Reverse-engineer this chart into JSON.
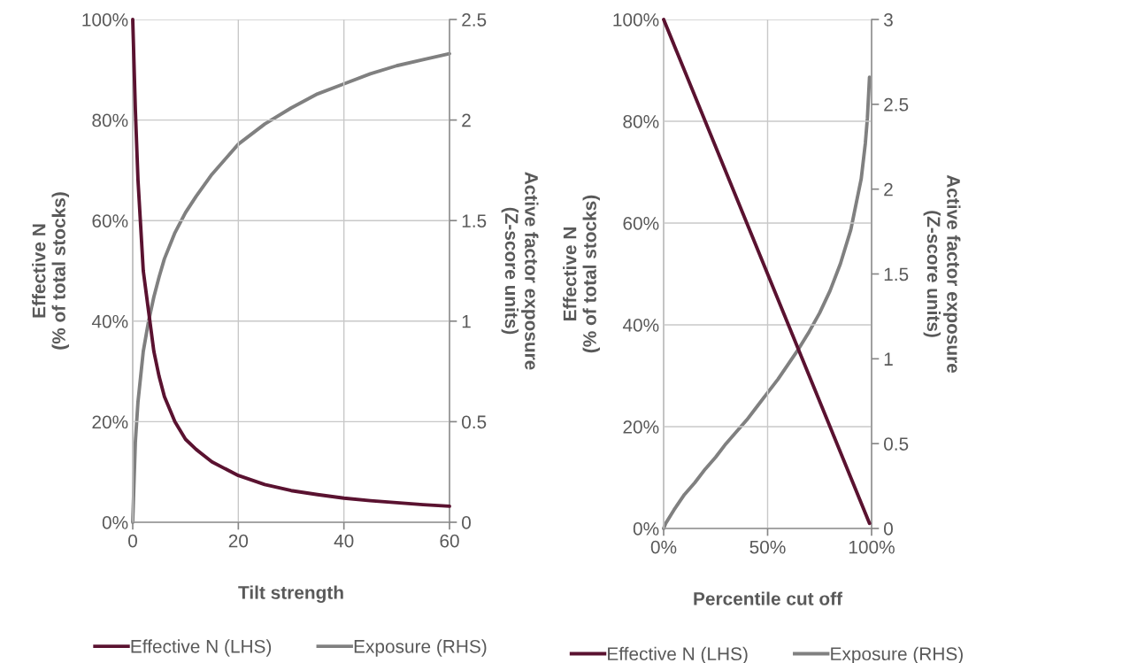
{
  "chart_data": [
    {
      "type": "line",
      "xlabel": "Tilt strength",
      "ylabel": "Effective N\n(% of total stocks)",
      "y2label": "Active factor exposure\n(Z-score units)",
      "xlim": [
        0,
        60
      ],
      "xticks": [
        0,
        20,
        40,
        60
      ],
      "ylim": [
        0,
        100
      ],
      "yticks": [
        {
          "value": 0,
          "label": "0%"
        },
        {
          "value": 20,
          "label": "20%"
        },
        {
          "value": 40,
          "label": "40%"
        },
        {
          "value": 60,
          "label": "60%"
        },
        {
          "value": 80,
          "label": "80%"
        },
        {
          "value": 100,
          "label": "100%"
        }
      ],
      "y2lim": [
        0,
        2.5
      ],
      "y2ticks": [
        0,
        0.5,
        1,
        1.5,
        2,
        2.5
      ],
      "grid": true,
      "legend": "bottom",
      "line_style": "solid",
      "series": [
        {
          "name": "Effective N (LHS)",
          "color": "#5a1230",
          "x": [
            0,
            0.5,
            1,
            2,
            3,
            4,
            5,
            6,
            8,
            10,
            12,
            15,
            20,
            25,
            30,
            35,
            40,
            45,
            50,
            55,
            60
          ],
          "values": [
            100,
            82,
            68,
            50,
            42,
            34,
            29,
            25,
            20,
            16.5,
            14.5,
            12,
            9.3,
            7.5,
            6.3,
            5.5,
            4.8,
            4.3,
            3.9,
            3.5,
            3.2
          ]
        },
        {
          "name": "Exposure (RHS)",
          "color": "#808080",
          "axis": "y2",
          "x": [
            0,
            0.5,
            1,
            2,
            3,
            4,
            5,
            6,
            8,
            10,
            12,
            15,
            20,
            25,
            30,
            35,
            40,
            45,
            50,
            55,
            60
          ],
          "values": [
            0,
            0.4,
            0.6,
            0.85,
            1.0,
            1.12,
            1.22,
            1.31,
            1.44,
            1.54,
            1.62,
            1.73,
            1.88,
            1.98,
            2.06,
            2.13,
            2.18,
            2.23,
            2.27,
            2.3,
            2.33
          ]
        }
      ]
    },
    {
      "type": "line",
      "xlabel": "Percentile cut off",
      "ylabel": "Effective N\n(% of total stocks)",
      "y2label": "Active factor exposure\n(Z-score units)",
      "xlim": [
        0,
        100
      ],
      "xticks": [
        {
          "value": 0,
          "label": "0%"
        },
        {
          "value": 50,
          "label": "50%"
        },
        {
          "value": 100,
          "label": "100%"
        }
      ],
      "ylim": [
        0,
        100
      ],
      "yticks": [
        {
          "value": 0,
          "label": "0%"
        },
        {
          "value": 20,
          "label": "20%"
        },
        {
          "value": 40,
          "label": "40%"
        },
        {
          "value": 60,
          "label": "60%"
        },
        {
          "value": 80,
          "label": "80%"
        },
        {
          "value": 100,
          "label": "100%"
        }
      ],
      "y2lim": [
        0,
        3
      ],
      "y2ticks": [
        0,
        0.5,
        1,
        1.5,
        2,
        2.5,
        3
      ],
      "grid": true,
      "legend": "bottom",
      "line_style": "solid",
      "series": [
        {
          "name": "Effective N (LHS)",
          "color": "#5a1230",
          "x": [
            0,
            99
          ],
          "values": [
            100,
            1
          ]
        },
        {
          "name": "Exposure (RHS)",
          "color": "#808080",
          "axis": "y2",
          "x": [
            0,
            1,
            5,
            10,
            15,
            20,
            25,
            30,
            35,
            40,
            45,
            50,
            55,
            60,
            65,
            70,
            75,
            80,
            85,
            90,
            95,
            97,
            98,
            99
          ],
          "values": [
            0,
            0.03,
            0.11,
            0.2,
            0.27,
            0.35,
            0.42,
            0.5,
            0.57,
            0.64,
            0.72,
            0.8,
            0.88,
            0.97,
            1.06,
            1.16,
            1.27,
            1.4,
            1.56,
            1.76,
            2.06,
            2.27,
            2.42,
            2.66
          ]
        }
      ]
    }
  ]
}
